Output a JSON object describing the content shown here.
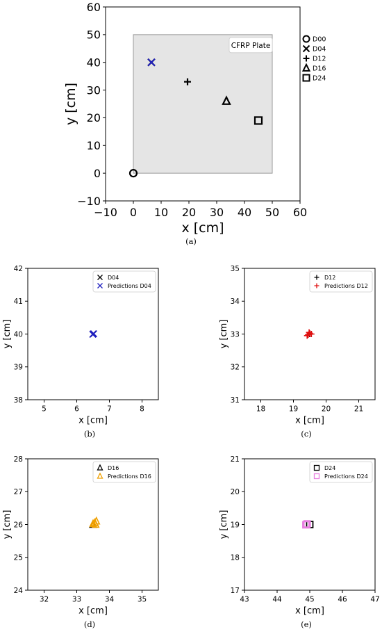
{
  "chart_data": [
    {
      "type": "scatter",
      "panel_label": "(a)",
      "xlabel": "x [cm]",
      "ylabel": "y [cm]",
      "xlim": [
        -10,
        60
      ],
      "ylim": [
        -10,
        60
      ],
      "xticks": [
        -10,
        0,
        10,
        20,
        30,
        40,
        50,
        60
      ],
      "yticks": [
        -10,
        0,
        10,
        20,
        30,
        40,
        50,
        60
      ],
      "xtick_labels": [
        "−10",
        "0",
        "10",
        "20",
        "30",
        "40",
        "50",
        "60"
      ],
      "ytick_labels": [
        "−10",
        "0",
        "10",
        "20",
        "30",
        "40",
        "50",
        "60"
      ],
      "grid": false,
      "legend_position": "outside-right",
      "plate": {
        "label": "CFRP Plate",
        "x": [
          0,
          50
        ],
        "y": [
          0,
          50
        ],
        "color": "#e5e5e5"
      },
      "series": [
        {
          "name": "D00",
          "marker": "circle",
          "color": "#000000",
          "points": [
            [
              0,
              0
            ]
          ]
        },
        {
          "name": "D04",
          "marker": "x",
          "color": "#000000",
          "points": [
            [
              6.5,
              40
            ]
          ]
        },
        {
          "name": "D12",
          "marker": "plus",
          "color": "#000000",
          "points": [
            [
              19.5,
              33
            ]
          ]
        },
        {
          "name": "D16",
          "marker": "triangle",
          "color": "#000000",
          "points": [
            [
              33.5,
              26
            ]
          ]
        },
        {
          "name": "D24",
          "marker": "square",
          "color": "#000000",
          "points": [
            [
              45,
              19
            ]
          ]
        },
        {
          "marker": "x",
          "color": "#1f1fbf",
          "points": [
            [
              6.5,
              40
            ]
          ]
        }
      ]
    },
    {
      "type": "scatter",
      "panel_label": "(b)",
      "xlabel": "x [cm]",
      "ylabel": "y [cm]",
      "xlim": [
        4.5,
        8.5
      ],
      "ylim": [
        38,
        42
      ],
      "xticks": [
        5,
        6,
        7,
        8
      ],
      "yticks": [
        38,
        39,
        40,
        41,
        42
      ],
      "xtick_labels": [
        "5",
        "6",
        "7",
        "8"
      ],
      "ytick_labels": [
        "38",
        "39",
        "40",
        "41",
        "42"
      ],
      "grid": false,
      "legend_position": "top-right",
      "series": [
        {
          "name": "D04",
          "marker": "x",
          "color": "#000000",
          "points": [
            [
              6.5,
              40
            ]
          ]
        },
        {
          "name": "Predictions D04",
          "marker": "x",
          "color": "#1f1fbf",
          "points": [
            [
              6.5,
              40
            ],
            [
              6.52,
              40.01
            ],
            [
              6.49,
              39.99
            ]
          ]
        }
      ]
    },
    {
      "type": "scatter",
      "panel_label": "(c)",
      "xlabel": "x [cm]",
      "ylabel": "y [cm]",
      "xlim": [
        17.5,
        21.5
      ],
      "ylim": [
        31,
        35
      ],
      "xticks": [
        18,
        19,
        20,
        21
      ],
      "yticks": [
        31,
        32,
        33,
        34,
        35
      ],
      "xtick_labels": [
        "18",
        "19",
        "20",
        "21"
      ],
      "ytick_labels": [
        "31",
        "32",
        "33",
        "34",
        "35"
      ],
      "grid": false,
      "legend_position": "top-right",
      "series": [
        {
          "name": "D12",
          "marker": "plus",
          "color": "#000000",
          "points": [
            [
              19.5,
              33
            ]
          ]
        },
        {
          "name": "Predictions D12",
          "marker": "plus",
          "color": "#e01010",
          "points": [
            [
              19.45,
              32.98
            ],
            [
              19.5,
              33.02
            ],
            [
              19.55,
              33.0
            ],
            [
              19.42,
              32.95
            ],
            [
              19.48,
              33.05
            ]
          ]
        }
      ]
    },
    {
      "type": "scatter",
      "panel_label": "(d)",
      "xlabel": "x [cm]",
      "ylabel": "y [cm]",
      "xlim": [
        31.5,
        35.5
      ],
      "ylim": [
        24,
        28
      ],
      "xticks": [
        32,
        33,
        34,
        35
      ],
      "yticks": [
        24,
        25,
        26,
        27,
        28
      ],
      "xtick_labels": [
        "32",
        "33",
        "34",
        "35"
      ],
      "ytick_labels": [
        "24",
        "25",
        "26",
        "27",
        "28"
      ],
      "grid": false,
      "legend_position": "top-right",
      "series": [
        {
          "name": "D16",
          "marker": "triangle",
          "color": "#000000",
          "points": [
            [
              33.5,
              26
            ]
          ]
        },
        {
          "name": "Predictions D16",
          "marker": "triangle",
          "color": "#f0a000",
          "points": [
            [
              33.55,
              26.05
            ],
            [
              33.6,
              26.1
            ],
            [
              33.5,
              26.02
            ],
            [
              33.58,
              26.0
            ]
          ]
        }
      ]
    },
    {
      "type": "scatter",
      "panel_label": "(e)",
      "xlabel": "x [cm]",
      "ylabel": "y [cm]",
      "xlim": [
        43,
        47
      ],
      "ylim": [
        17,
        21
      ],
      "xticks": [
        43,
        44,
        45,
        46,
        47
      ],
      "yticks": [
        17,
        18,
        19,
        20,
        21
      ],
      "xtick_labels": [
        "43",
        "44",
        "45",
        "46",
        "47"
      ],
      "ytick_labels": [
        "17",
        "18",
        "19",
        "20",
        "21"
      ],
      "grid": false,
      "legend_position": "top-right",
      "series": [
        {
          "name": "D24",
          "marker": "square",
          "color": "#000000",
          "points": [
            [
              45,
              19
            ]
          ]
        },
        {
          "name": "Predictions D24",
          "marker": "square",
          "color": "#e87ee0",
          "points": [
            [
              44.9,
              19.0
            ],
            [
              44.92,
              19.02
            ],
            [
              44.88,
              18.99
            ]
          ]
        }
      ]
    }
  ]
}
